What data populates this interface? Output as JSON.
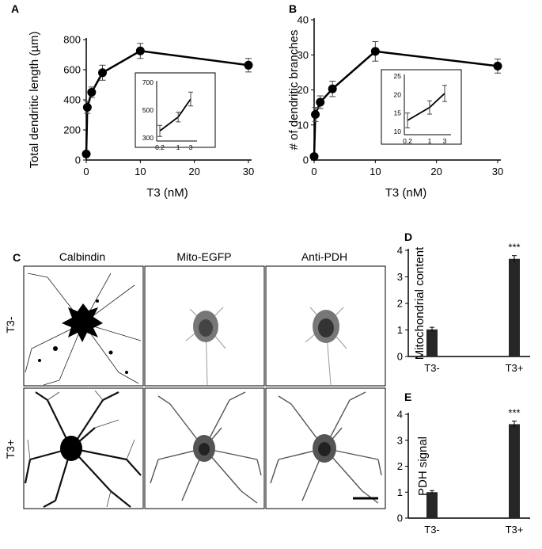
{
  "panels": {
    "A": "A",
    "B": "B",
    "C": "C",
    "D": "D",
    "E": "E"
  },
  "column_headers": [
    "Calbindin",
    "Mito-EGFP",
    "Anti-PDH"
  ],
  "row_labels": [
    "T3-",
    "T3+"
  ],
  "significance": "***",
  "chart_data": [
    {
      "id": "A",
      "type": "line",
      "xlabel": "T3 (nM)",
      "ylabel": "Total dendritic length (µm)",
      "xlim": [
        0,
        30
      ],
      "ylim": [
        0,
        800
      ],
      "xticks": [
        "0",
        "10",
        "20",
        "30"
      ],
      "yticks": [
        "0",
        "200",
        "400",
        "600",
        "800"
      ],
      "x": [
        0,
        0.2,
        1,
        3,
        10,
        30
      ],
      "y": [
        40,
        350,
        450,
        580,
        725,
        630
      ],
      "err": [
        0,
        40,
        35,
        50,
        50,
        45
      ],
      "inset": {
        "type": "line",
        "xticks": [
          "0.2",
          "1",
          "3"
        ],
        "yticks": [
          "300",
          "500",
          "700"
        ],
        "ylim": [
          300,
          700
        ],
        "x": [
          0.2,
          1,
          3
        ],
        "y": [
          350,
          450,
          580
        ],
        "err": [
          40,
          35,
          50
        ]
      }
    },
    {
      "id": "B",
      "type": "line",
      "xlabel": "T3 (nM)",
      "ylabel": "# of dendritic branches",
      "xlim": [
        0,
        30
      ],
      "ylim": [
        0,
        40
      ],
      "xticks": [
        "0",
        "10",
        "20",
        "30"
      ],
      "yticks": [
        "0",
        "10",
        "20",
        "30",
        "40"
      ],
      "x": [
        0,
        0.2,
        1,
        3,
        10,
        30
      ],
      "y": [
        1,
        13,
        16.5,
        20.3,
        31,
        26.8
      ],
      "err": [
        0,
        2,
        1.8,
        2.2,
        2.8,
        2
      ],
      "inset": {
        "type": "line",
        "xticks": [
          "0.2",
          "1",
          "3"
        ],
        "yticks": [
          "10",
          "15",
          "20",
          "25"
        ],
        "ylim": [
          10,
          25
        ],
        "x": [
          0.2,
          1,
          3
        ],
        "y": [
          13,
          16.5,
          20.3
        ],
        "err": [
          2,
          1.8,
          2.2
        ]
      }
    },
    {
      "id": "D",
      "type": "bar",
      "ylabel": "Mitochondrial content",
      "categories": [
        "T3-",
        "T3+"
      ],
      "values": [
        1.02,
        3.68
      ],
      "err": [
        0.08,
        0.12
      ],
      "ylim": [
        0,
        4
      ],
      "yticks": [
        "0",
        "1",
        "2",
        "3",
        "4"
      ]
    },
    {
      "id": "E",
      "type": "bar",
      "ylabel": "PDH signal",
      "categories": [
        "T3-",
        "T3+"
      ],
      "values": [
        1.0,
        3.62
      ],
      "err": [
        0.06,
        0.12
      ],
      "ylim": [
        0,
        4
      ],
      "yticks": [
        "0",
        "1",
        "2",
        "3",
        "4"
      ]
    }
  ]
}
